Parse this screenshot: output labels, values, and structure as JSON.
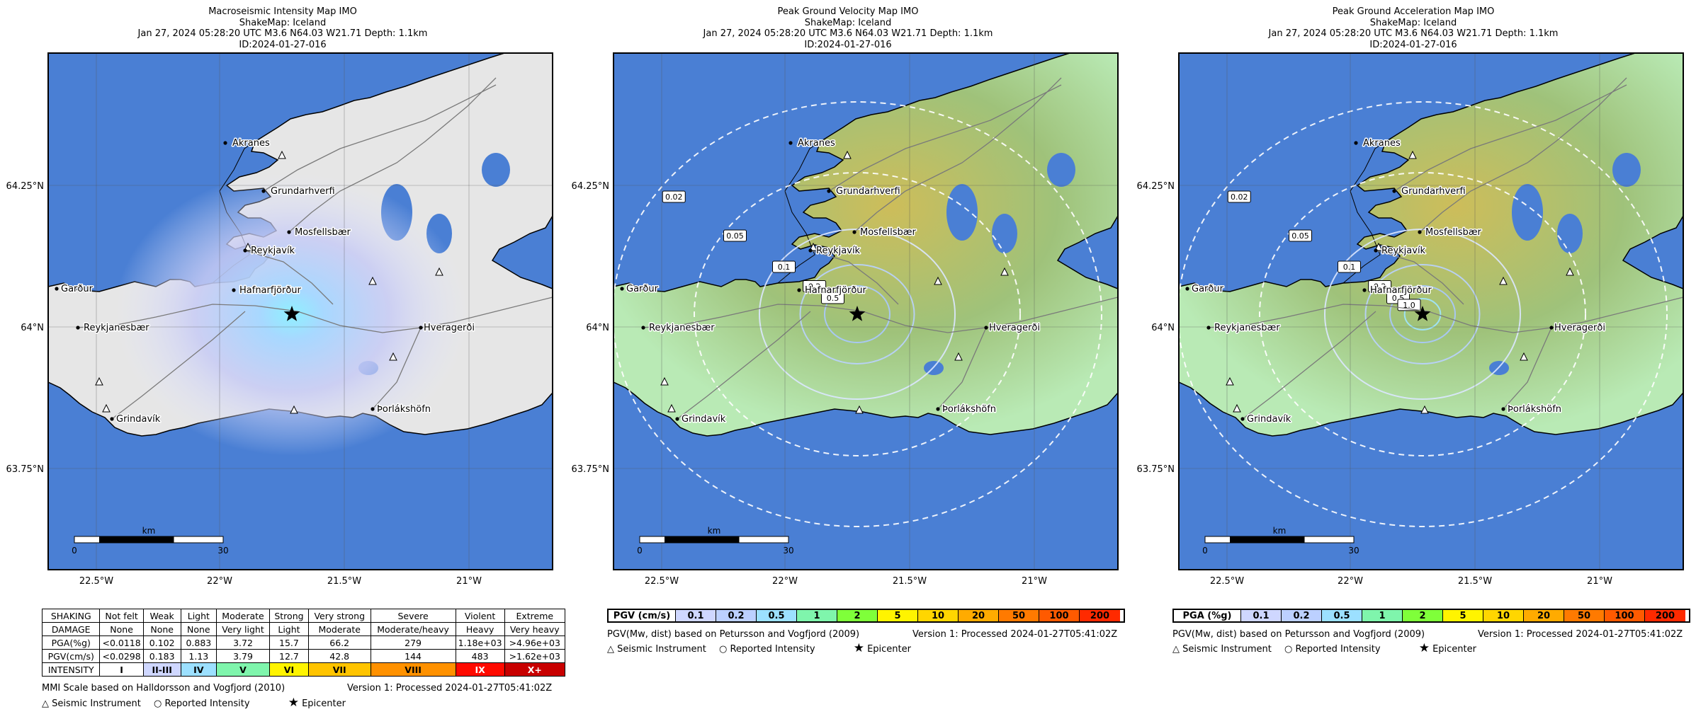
{
  "colors": {
    "water": "#4a7fd4",
    "land_grey": "#e6e6e6",
    "land_green": "#b9eab5",
    "land_yellow": "#cdbd5a",
    "mmi_intensity": [
      "#ffffff",
      "#cfd7ff",
      "#9ce0ff",
      "#7ff5ac",
      "#fff400",
      "#ffc400",
      "#ff9100",
      "#ff0a00",
      "#c80000"
    ]
  },
  "icons": {
    "instrument": "triangle-icon",
    "reported": "circle-icon",
    "epicenter": "star-icon"
  },
  "panels": [
    {
      "title_lines": [
        "Macroseismic Intensity Map IMO",
        "ShakeMap: Iceland",
        "Jan 27, 2024 05:28:20 UTC M3.6 N64.03 W21.71 Depth: 1.1km",
        "ID:2024-01-27-016"
      ]
    },
    {
      "title_lines": [
        "Peak Ground Velocity Map IMO",
        "ShakeMap: Iceland",
        "Jan 27, 2024 05:28:20 UTC M3.6 N64.03 W21.71 Depth: 1.1km",
        "ID:2024-01-27-016"
      ],
      "contour_labels": [
        "0.02",
        "0.05",
        "0.1",
        "0.2",
        "0.5"
      ]
    },
    {
      "title_lines": [
        "Peak Ground Acceleration Map IMO",
        "ShakeMap: Iceland",
        "Jan 27, 2024 05:28:20 UTC M3.6 N64.03 W21.71 Depth: 1.1km",
        "ID:2024-01-27-016"
      ],
      "contour_labels": [
        "0.02",
        "0.05",
        "0.1",
        "0.2",
        "0.5",
        "1.0"
      ]
    }
  ],
  "map": {
    "lat_ticks": [
      "64.25°N",
      "64°N",
      "63.75°N"
    ],
    "lon_ticks": [
      "22.5°W",
      "22°W",
      "21.5°W",
      "21°W"
    ],
    "places": [
      "Akranes",
      "Grundarhverfi",
      "Mosfellsbær",
      "Reykjavík",
      "Garður",
      "Hafnarfjörður",
      "Reykjanesbær",
      "Hveragerði",
      "Grindavík",
      "Þorlákshöfn"
    ],
    "scalebar": {
      "unit": "km",
      "start": "0",
      "end": "30"
    }
  },
  "mmi_table": {
    "rows": [
      {
        "label": "SHAKING",
        "cells": [
          "Not felt",
          "Weak",
          "Light",
          "Moderate",
          "Strong",
          "Very strong",
          "Severe",
          "Violent",
          "Extreme"
        ]
      },
      {
        "label": "DAMAGE",
        "cells": [
          "None",
          "None",
          "None",
          "Very light",
          "Light",
          "Moderate",
          "Moderate/heavy",
          "Heavy",
          "Very heavy"
        ]
      },
      {
        "label": "PGA(%g)",
        "cells": [
          "<0.0118",
          "0.102",
          "0.883",
          "3.72",
          "15.7",
          "66.2",
          "279",
          "1.18e+03",
          ">4.96e+03"
        ]
      },
      {
        "label": "PGV(cm/s)",
        "cells": [
          "<0.0298",
          "0.183",
          "1.13",
          "3.79",
          "12.7",
          "42.8",
          "144",
          "483",
          ">1.62e+03"
        ]
      },
      {
        "label": "INTENSITY",
        "cells": [
          "I",
          "II-III",
          "IV",
          "V",
          "VI",
          "VII",
          "VIII",
          "IX",
          "X+"
        ]
      }
    ],
    "note": "MMI Scale based on Halldorsson and Vogfjord (2010)",
    "version": "Version 1: Processed 2024-01-27T05:41:02Z"
  },
  "pgv_legend": {
    "label": "PGV (cm/s)",
    "values": [
      "0.1",
      "0.2",
      "0.5",
      "1",
      "2",
      "5",
      "10",
      "20",
      "50",
      "100",
      "200"
    ],
    "note": "PGV(Mw, dist) based on Petursson and Vogfjord (2009)",
    "version": "Version 1: Processed 2024-01-27T05:41:02Z"
  },
  "pga_legend": {
    "label": "PGA (%g)",
    "values": [
      "0.1",
      "0.2",
      "0.5",
      "1",
      "2",
      "5",
      "10",
      "20",
      "50",
      "100",
      "200"
    ],
    "note": "PGV(Mw, dist) based on Petursson and Vogfjord (2009)",
    "version": "Version 1: Processed 2024-01-27T05:41:02Z"
  },
  "symbols": {
    "instrument": "Seismic Instrument",
    "reported": "Reported Intensity",
    "epicenter": "Epicenter"
  }
}
